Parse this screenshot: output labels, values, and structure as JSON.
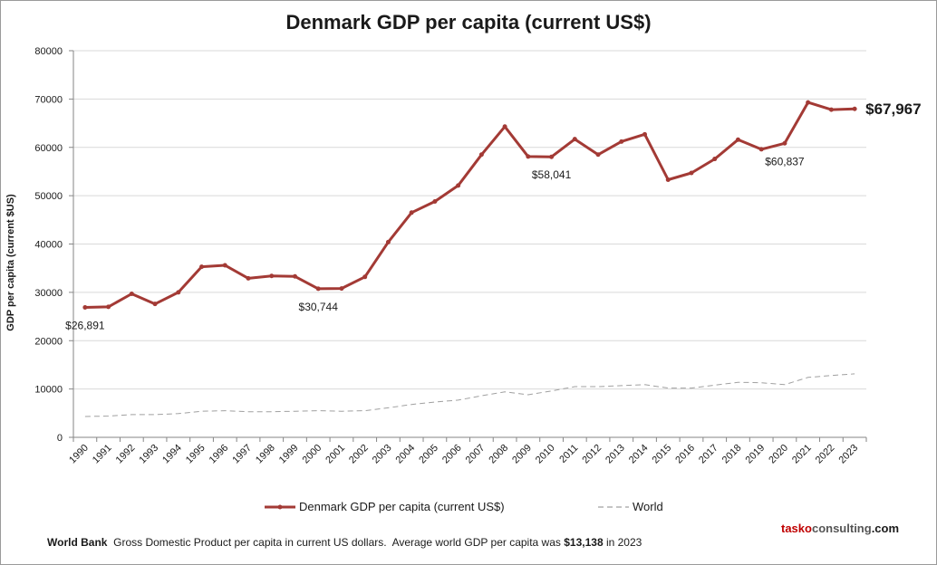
{
  "chart_data": {
    "type": "line",
    "title": "Denmark GDP per capita (current US$)",
    "ylabel": "GDP per capita (current $US)",
    "ylim": [
      0,
      80000
    ],
    "yticks": [
      0,
      10000,
      20000,
      30000,
      40000,
      50000,
      60000,
      70000,
      80000
    ],
    "grid": true,
    "legend_position": "bottom",
    "categories": [
      "1990",
      "1991",
      "1992",
      "1993",
      "1994",
      "1995",
      "1996",
      "1997",
      "1998",
      "1999",
      "2000",
      "2001",
      "2002",
      "2003",
      "2004",
      "2005",
      "2006",
      "2007",
      "2008",
      "2009",
      "2010",
      "2011",
      "2012",
      "2013",
      "2014",
      "2015",
      "2016",
      "2017",
      "2018",
      "2019",
      "2020",
      "2021",
      "2022",
      "2023"
    ],
    "series": [
      {
        "name": "Denmark GDP per capita (current US$)",
        "color": "#a33a35",
        "style": "solid-with-markers",
        "values": [
          26891,
          27000,
          29700,
          27600,
          30000,
          35300,
          35600,
          32900,
          33400,
          33300,
          30744,
          30800,
          33200,
          40400,
          46500,
          48800,
          52100,
          58500,
          64300,
          58100,
          58041,
          61700,
          58500,
          61200,
          62700,
          53300,
          54700,
          57600,
          61600,
          59600,
          60837,
          69300,
          67800,
          67967
        ]
      },
      {
        "name": "World",
        "color": "#a0a0a0",
        "style": "dashed",
        "values": [
          4300,
          4400,
          4700,
          4700,
          4900,
          5400,
          5500,
          5300,
          5300,
          5400,
          5500,
          5400,
          5500,
          6100,
          6800,
          7300,
          7700,
          8600,
          9400,
          8800,
          9600,
          10500,
          10500,
          10700,
          10900,
          10200,
          10200,
          10800,
          11400,
          11300,
          10900,
          12400,
          12800,
          13138
        ]
      }
    ],
    "annotations": [
      {
        "index": 0,
        "text": "$26,891"
      },
      {
        "index": 10,
        "text": "$30,744"
      },
      {
        "index": 20,
        "text": "$58,041"
      },
      {
        "index": 30,
        "text": "$60,837"
      },
      {
        "index": 33,
        "text": "$67,967"
      }
    ]
  },
  "footer": {
    "source": "World Bank",
    "text_before": "  Gross Domestic Product per capita in current US dollars.  Average world GDP per capita was ",
    "highlight": "$13,138",
    "text_after": " in 2023"
  },
  "brand": {
    "part1": "tasko",
    "part2": "consulting",
    "part3": ".com"
  }
}
